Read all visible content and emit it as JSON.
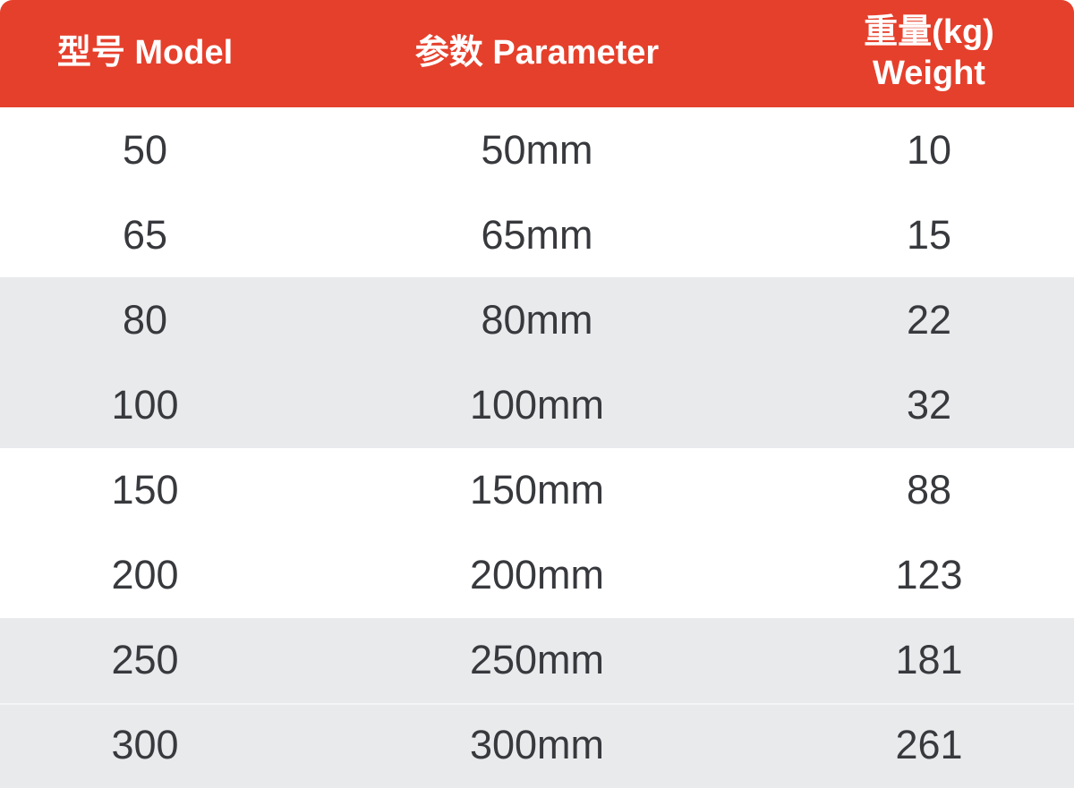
{
  "header": {
    "model": "型号 Model",
    "parameter": "参数 Parameter",
    "weight_line1": "重量(kg)",
    "weight_line2": "Weight"
  },
  "chart_data": {
    "type": "table",
    "title": "",
    "columns": [
      "型号 Model",
      "参数 Parameter",
      "重量(kg) Weight"
    ],
    "rows": [
      [
        "50",
        "50mm",
        "10"
      ],
      [
        "65",
        "65mm",
        "15"
      ],
      [
        "80",
        "80mm",
        "22"
      ],
      [
        "100",
        "100mm",
        "32"
      ],
      [
        "150",
        "150mm",
        "88"
      ],
      [
        "200",
        "200mm",
        "123"
      ],
      [
        "250",
        "250mm",
        "181"
      ],
      [
        "300",
        "300mm",
        "261"
      ]
    ],
    "layout_hints": {
      "stripe_pattern": "rows shaded in pairs: rows 3-4 and 7-8 gray, others white",
      "header_style": "red bar, rounded top corners, white bold text",
      "column_alignment": "center"
    }
  },
  "colors": {
    "header_bg": "#E5402C",
    "header_text": "#FFFFFF",
    "stripe_bg": "#E9EAEC",
    "plain_bg": "#FFFFFF",
    "cell_text": "#37393D"
  }
}
